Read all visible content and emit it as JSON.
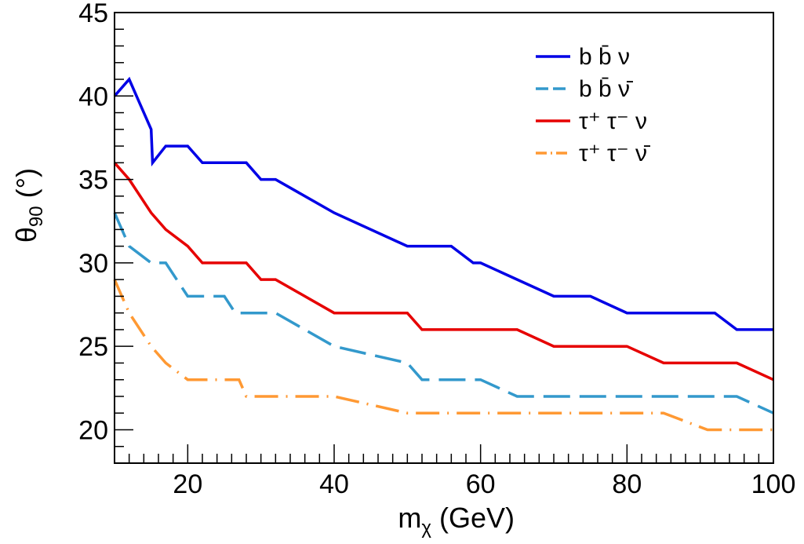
{
  "chart_data": {
    "type": "line",
    "xlabel": "m_χ (GeV)",
    "ylabel": "θ_90 (°)",
    "xlim": [
      10,
      100
    ],
    "ylim": [
      18,
      45
    ],
    "x_ticks": [
      20,
      40,
      60,
      80,
      100
    ],
    "y_ticks": [
      20,
      25,
      30,
      35,
      40,
      45
    ],
    "grid": false,
    "legend_position": "top-right",
    "series": [
      {
        "name": "b b̄ ν",
        "color": "#0000e6",
        "dash": "solid",
        "x": [
          10,
          12,
          15,
          15.2,
          17,
          20,
          22,
          25,
          28,
          30,
          32,
          40,
          50,
          52,
          56,
          59,
          60,
          65,
          70,
          75,
          80,
          82,
          85,
          88,
          92,
          95,
          100
        ],
        "y": [
          40,
          41,
          38,
          36,
          37,
          37,
          36,
          36,
          36,
          35,
          35,
          33,
          31,
          31,
          31,
          30,
          30,
          29,
          28,
          28,
          27,
          27,
          27,
          27,
          27,
          26,
          26
        ]
      },
      {
        "name": "b b̄ ν̄",
        "color": "#3399cc",
        "dash": "long-dash",
        "x": [
          10,
          12,
          15,
          17,
          20,
          22,
          25,
          26.5,
          28,
          30,
          32,
          40,
          50,
          52,
          56,
          60,
          65,
          70,
          75,
          80,
          85,
          90,
          95,
          100
        ],
        "y": [
          33,
          31,
          30,
          30,
          28,
          28,
          28,
          27,
          27,
          27,
          27,
          25,
          24,
          23,
          23,
          23,
          22,
          22,
          22,
          22,
          22,
          22,
          22,
          21
        ]
      },
      {
        "name": "τ⁺ τ⁻ ν",
        "color": "#e60000",
        "dash": "solid",
        "x": [
          10,
          12,
          15,
          17,
          20,
          22,
          25,
          28,
          30,
          32,
          40,
          45,
          50,
          52,
          56,
          60,
          65,
          70,
          75,
          80,
          85,
          90,
          95,
          100
        ],
        "y": [
          36,
          35,
          33,
          32,
          31,
          30,
          30,
          30,
          29,
          29,
          27,
          27,
          27,
          26,
          26,
          26,
          26,
          25,
          25,
          25,
          24,
          24,
          24,
          23
        ]
      },
      {
        "name": "τ⁺ τ⁻ ν̄",
        "color": "#ff9933",
        "dash": "dash-dot",
        "x": [
          10,
          12,
          15,
          17,
          20,
          22,
          25,
          27,
          28,
          30,
          32,
          40,
          50,
          52,
          56,
          60,
          65,
          70,
          75,
          80,
          85,
          88,
          91,
          95,
          100
        ],
        "y": [
          29,
          27,
          25,
          24,
          23,
          23,
          23,
          23,
          22,
          22,
          22,
          22,
          21,
          21,
          21,
          21,
          21,
          21,
          21,
          21,
          21,
          20.5,
          20,
          20,
          20
        ]
      }
    ]
  }
}
